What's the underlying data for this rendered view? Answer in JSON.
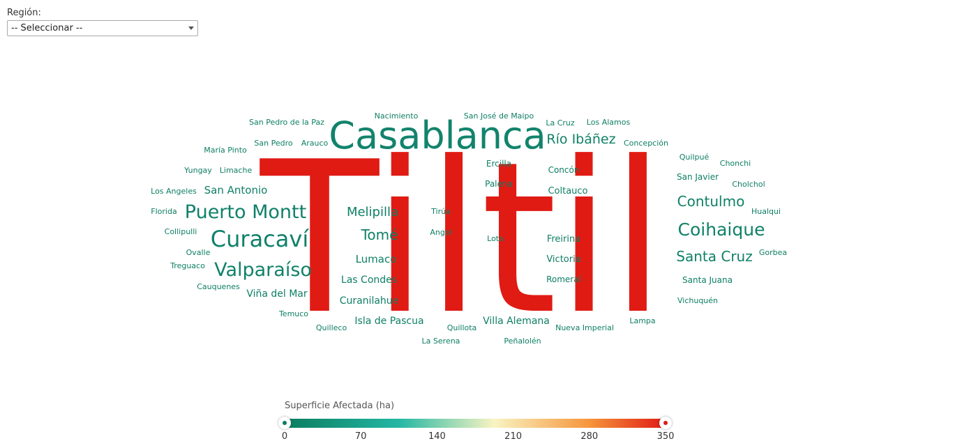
{
  "filter": {
    "label": "Región:",
    "selected": "-- Seleccionar --"
  },
  "colors": {
    "low": "#0b7c5f",
    "teal": "#24b7a3",
    "mid": "#f8f4c2",
    "orange": "#f6953c",
    "high": "#e01b14"
  },
  "legend": {
    "title": "Superficie Afectada (ha)",
    "min": 0,
    "max": 350,
    "ticks": [
      "0",
      "70",
      "140",
      "210",
      "280",
      "350"
    ]
  },
  "chart_data": {
    "type": "wordcloud",
    "value_label": "Superficie Afectada (ha)",
    "color_range": [
      0,
      350
    ],
    "words": [
      {
        "text": "Tiltil",
        "value": 350
      },
      {
        "text": "Casablanca",
        "value": 60
      },
      {
        "text": "Puerto Montt",
        "value": 50
      },
      {
        "text": "Curacaví",
        "value": 48
      },
      {
        "text": "Valparaíso",
        "value": 45
      },
      {
        "text": "Coihaique",
        "value": 42
      },
      {
        "text": "Río Ibáñez",
        "value": 35
      },
      {
        "text": "Contulmo",
        "value": 34
      },
      {
        "text": "Santa Cruz",
        "value": 34
      },
      {
        "text": "Melipilla",
        "value": 30
      },
      {
        "text": "Tomé",
        "value": 30
      },
      {
        "text": "San Antonio",
        "value": 28
      },
      {
        "text": "Lumaco",
        "value": 25
      },
      {
        "text": "Las Condes",
        "value": 24
      },
      {
        "text": "Curanilahue",
        "value": 24
      },
      {
        "text": "Isla de Pascua",
        "value": 24
      },
      {
        "text": "Villa Alemana",
        "value": 23
      },
      {
        "text": "Viña del Mar",
        "value": 23
      },
      {
        "text": "Coltauco",
        "value": 22
      },
      {
        "text": "Freirina",
        "value": 21
      },
      {
        "text": "Victoria",
        "value": 21
      },
      {
        "text": "Romeral",
        "value": 19
      },
      {
        "text": "Concón",
        "value": 19
      },
      {
        "text": "Ercilla",
        "value": 19
      },
      {
        "text": "Palena",
        "value": 19
      },
      {
        "text": "Santa Juana",
        "value": 19
      },
      {
        "text": "San Javier",
        "value": 19
      },
      {
        "text": "Nueva Imperial",
        "value": 17
      },
      {
        "text": "Angol",
        "value": 17
      },
      {
        "text": "Tirúa",
        "value": 16
      },
      {
        "text": "Lota",
        "value": 16
      },
      {
        "text": "Quillota",
        "value": 16
      },
      {
        "text": "Quilpué",
        "value": 16
      },
      {
        "text": "Vichuquén",
        "value": 16
      },
      {
        "text": "Hualqui",
        "value": 15
      },
      {
        "text": "Gorbea",
        "value": 15
      },
      {
        "text": "Chonchi",
        "value": 15
      },
      {
        "text": "Cholchol",
        "value": 15
      },
      {
        "text": "Lampa",
        "value": 15
      },
      {
        "text": "Peñalolén",
        "value": 15
      },
      {
        "text": "La Serena",
        "value": 15
      },
      {
        "text": "Quilleco",
        "value": 15
      },
      {
        "text": "Temuco",
        "value": 15
      },
      {
        "text": "Cauquenes",
        "value": 15
      },
      {
        "text": "Treguaco",
        "value": 15
      },
      {
        "text": "Ovalle",
        "value": 15
      },
      {
        "text": "Collipulli",
        "value": 15
      },
      {
        "text": "Florida",
        "value": 15
      },
      {
        "text": "Los Angeles",
        "value": 15
      },
      {
        "text": "Yungay",
        "value": 15
      },
      {
        "text": "Limache",
        "value": 15
      },
      {
        "text": "María Pinto",
        "value": 15
      },
      {
        "text": "San Pedro",
        "value": 15
      },
      {
        "text": "Arauco",
        "value": 15
      },
      {
        "text": "San Pedro de la Paz",
        "value": 15
      },
      {
        "text": "Nacimiento",
        "value": 15
      },
      {
        "text": "San José de Maipo",
        "value": 15
      },
      {
        "text": "La Cruz",
        "value": 15
      },
      {
        "text": "Los Alamos",
        "value": 15
      },
      {
        "text": "Concepción",
        "value": 15
      }
    ]
  }
}
